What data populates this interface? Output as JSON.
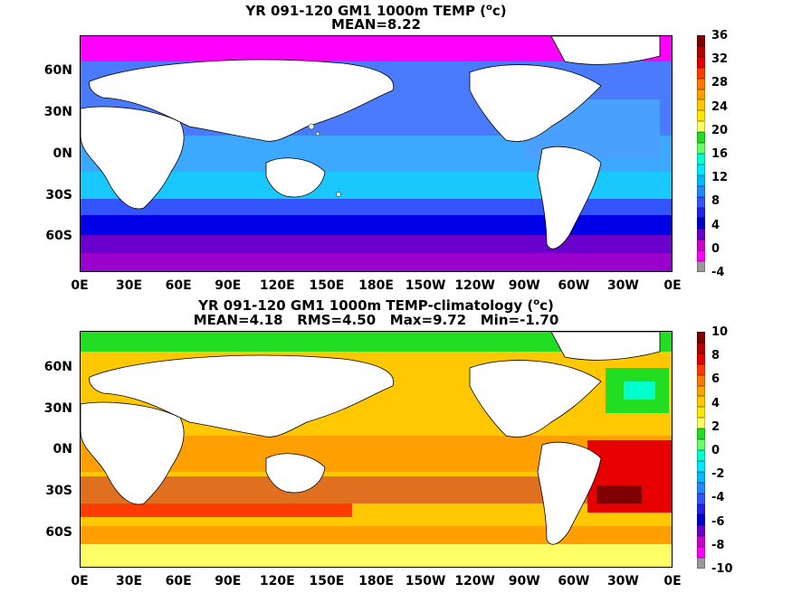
{
  "panels": [
    {
      "title_line1": "YR 091-120 GM1 1000m TEMP (",
      "title_unit_sup": "o",
      "title_unit_tail": "c)",
      "title_line2": "MEAN=8.22",
      "colorbar_ticks": [
        "36",
        "32",
        "28",
        "24",
        "20",
        "16",
        "12",
        "8",
        "4",
        "0",
        "-4"
      ],
      "colorbar_colors": [
        "#7f0000",
        "#b40000",
        "#e60000",
        "#ff3c00",
        "#ff7800",
        "#ffa000",
        "#ffc800",
        "#ffe800",
        "#ffff66",
        "#22dd22",
        "#66ff66",
        "#00ffcc",
        "#00e8ff",
        "#00b8ff",
        "#2288ff",
        "#3355ff",
        "#2222ee",
        "#0000cc",
        "#6a00cc",
        "#cc00cc",
        "#ff00ff",
        "#999999"
      ]
    },
    {
      "title_line1": "YR 091-120 GM1 1000m TEMP-climatology (",
      "title_unit_sup": "o",
      "title_unit_tail": "c)",
      "title_line2": "MEAN=4.18   RMS=4.50   Max=9.72   Min=-1.70",
      "colorbar_ticks": [
        "10",
        "8",
        "6",
        "4",
        "2",
        "0",
        "-2",
        "-4",
        "-6",
        "-8",
        "-10"
      ],
      "colorbar_colors": [
        "#7f0000",
        "#b40000",
        "#e60000",
        "#ff3c00",
        "#ff7800",
        "#ffa000",
        "#ffc800",
        "#ffe800",
        "#ffff66",
        "#22dd22",
        "#66ff66",
        "#00ffcc",
        "#00e8ff",
        "#00b8ff",
        "#2288ff",
        "#3355ff",
        "#2222ee",
        "#0000cc",
        "#6a00cc",
        "#cc00cc",
        "#ff00ff",
        "#999999"
      ]
    }
  ],
  "lat_labels": [
    "60N",
    "30N",
    "0N",
    "30S",
    "60S"
  ],
  "lon_labels": [
    "0E",
    "30E",
    "60E",
    "90E",
    "120E",
    "150E",
    "180E",
    "150W",
    "120W",
    "90W",
    "60W",
    "30W",
    "0E"
  ]
}
